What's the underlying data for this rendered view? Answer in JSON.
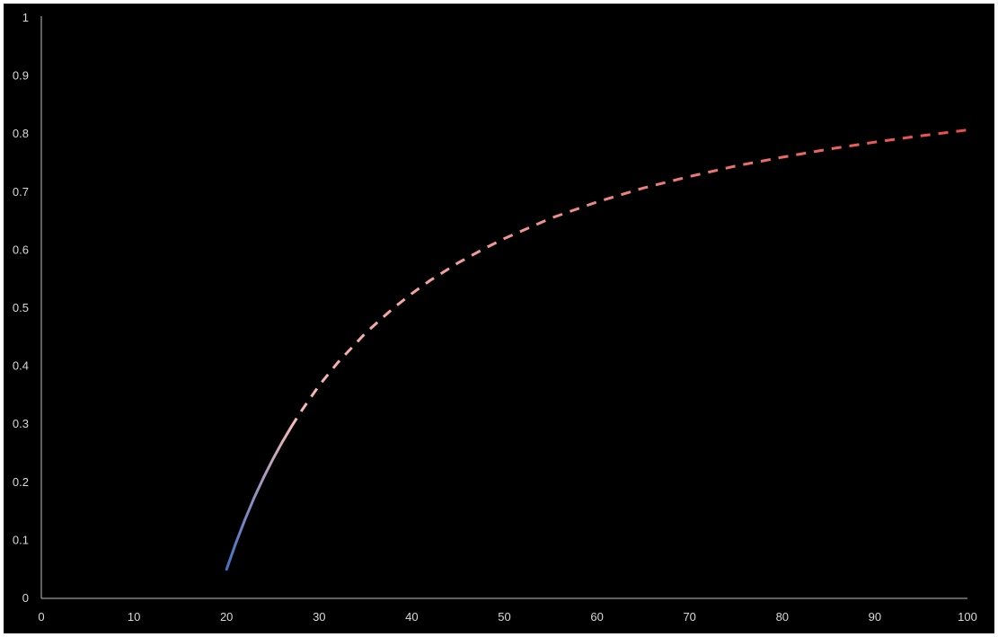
{
  "chart_data": {
    "type": "line",
    "title": "",
    "xlabel": "",
    "ylabel": "",
    "xlim": [
      0,
      100
    ],
    "ylim": [
      0,
      1
    ],
    "x_ticks": [
      0,
      10,
      20,
      30,
      40,
      50,
      60,
      70,
      80,
      90,
      100
    ],
    "x_tick_labels": [
      "0",
      "10",
      "20",
      "30",
      "40",
      "50",
      "60",
      "70",
      "80",
      "90",
      "100"
    ],
    "y_ticks": [
      0,
      0.1,
      0.2,
      0.3,
      0.4,
      0.5,
      0.6,
      0.7,
      0.8,
      0.9,
      1
    ],
    "y_tick_labels": [
      "0",
      "0.1",
      "0.2",
      "0.3",
      "0.4",
      "0.5",
      "0.6",
      "0.7",
      "0.8",
      "0.9",
      "1"
    ],
    "grid": false,
    "legend": "none",
    "series": [
      {
        "style": "solid",
        "color_start": "#4472c4",
        "color_end": "#f4b8b8",
        "x": [
          20,
          21,
          22,
          23,
          24,
          25,
          26,
          27
        ],
        "y": [
          0.05,
          0.095,
          0.136,
          0.174,
          0.208,
          0.24,
          0.269,
          0.296
        ]
      },
      {
        "style": "dashed",
        "color_start": "#f4b8b8",
        "color_end": "#e84c4c",
        "x": [
          27,
          28,
          30,
          32,
          35,
          38,
          40,
          42,
          45,
          48,
          50,
          55,
          60,
          65,
          70,
          75,
          80,
          85,
          90,
          95,
          100
        ],
        "y": [
          0.296,
          0.321,
          0.367,
          0.406,
          0.457,
          0.5,
          0.525,
          0.548,
          0.578,
          0.604,
          0.62,
          0.655,
          0.683,
          0.707,
          0.727,
          0.745,
          0.76,
          0.774,
          0.786,
          0.797,
          0.807
        ]
      }
    ]
  },
  "colors": {
    "background": "#000000",
    "border": "#ffffff",
    "axis": "#bfbfbf",
    "tick_text": "#d9d9d9"
  }
}
